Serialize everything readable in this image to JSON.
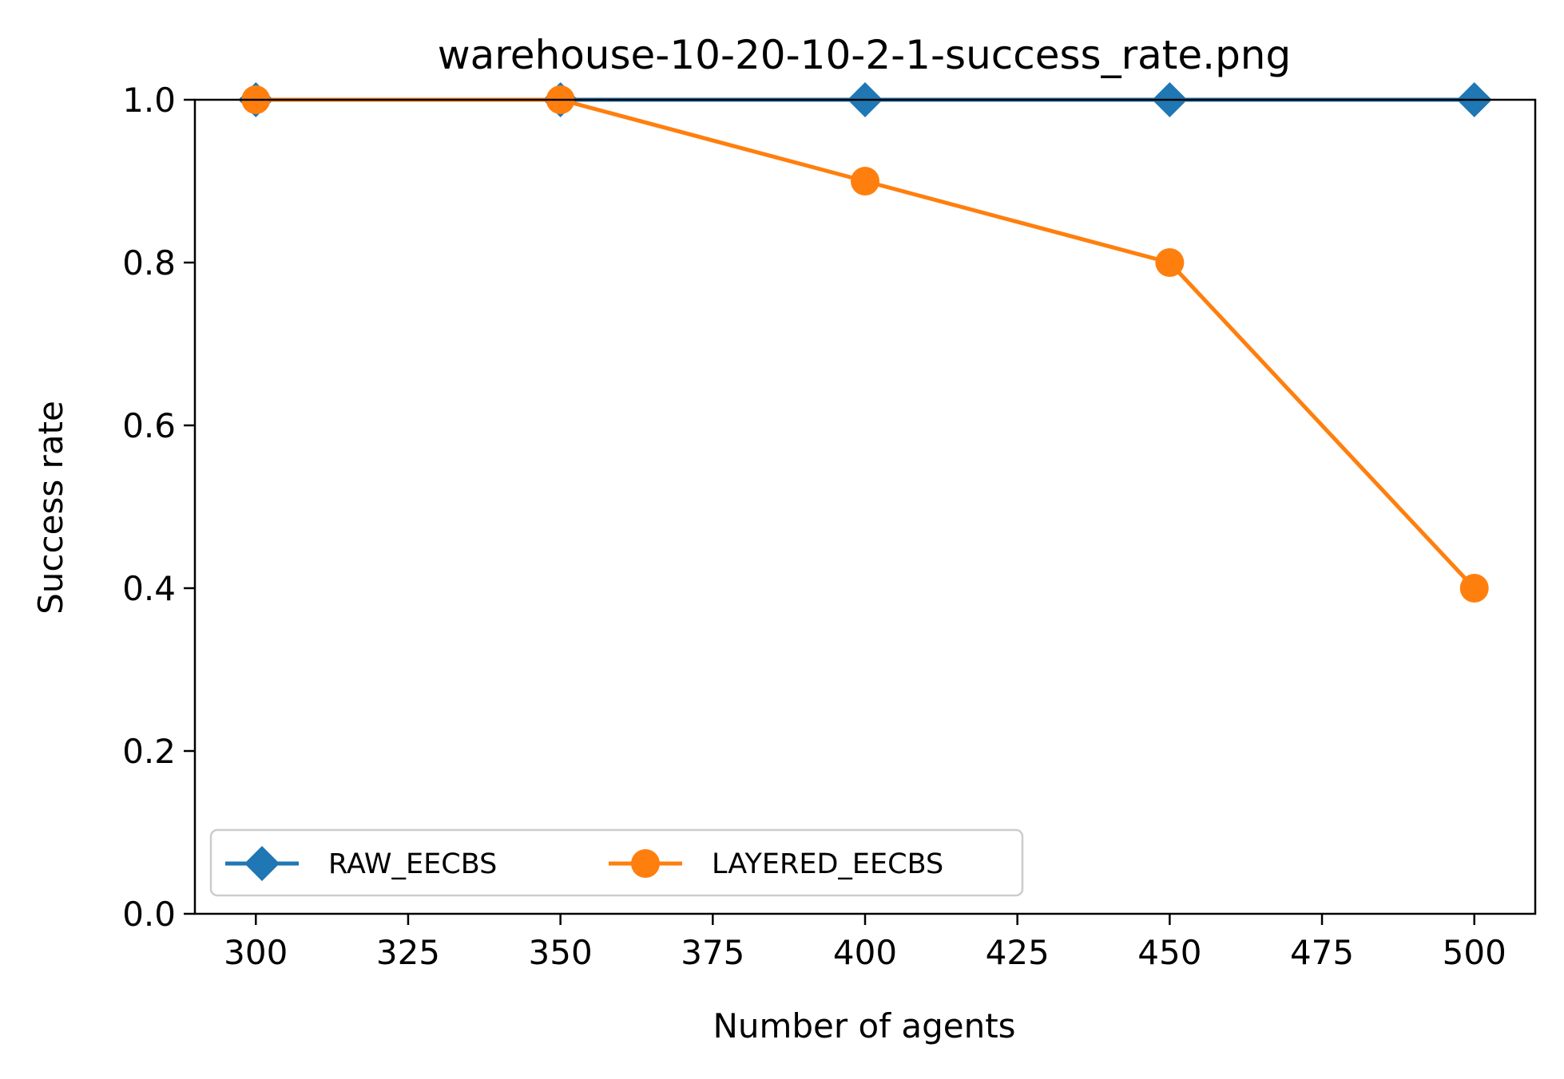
{
  "chart_data": {
    "type": "line",
    "title": "warehouse-10-20-10-2-1-success_rate.png",
    "xlabel": "Number of agents",
    "ylabel": "Success rate",
    "x": [
      300,
      350,
      400,
      450,
      500
    ],
    "xlim": [
      290,
      510
    ],
    "ylim": [
      0.0,
      1.0
    ],
    "xticks": [
      "300",
      "325",
      "350",
      "375",
      "400",
      "425",
      "450",
      "475",
      "500"
    ],
    "xtick_values": [
      300,
      325,
      350,
      375,
      400,
      425,
      450,
      475,
      500
    ],
    "yticks": [
      "0.0",
      "0.2",
      "0.4",
      "0.6",
      "0.8",
      "1.0"
    ],
    "ytick_values": [
      0.0,
      0.2,
      0.4,
      0.6,
      0.8,
      1.0
    ],
    "grid": false,
    "legend_position": "lower-left",
    "series": [
      {
        "name": "RAW_EECBS",
        "color": "#1f77b4",
        "marker": "diamond",
        "values": [
          1.0,
          1.0,
          1.0,
          1.0,
          1.0
        ]
      },
      {
        "name": "LAYERED_EECBS",
        "color": "#ff7f0e",
        "marker": "circle",
        "values": [
          1.0,
          1.0,
          0.9,
          0.8,
          0.4
        ]
      }
    ]
  }
}
